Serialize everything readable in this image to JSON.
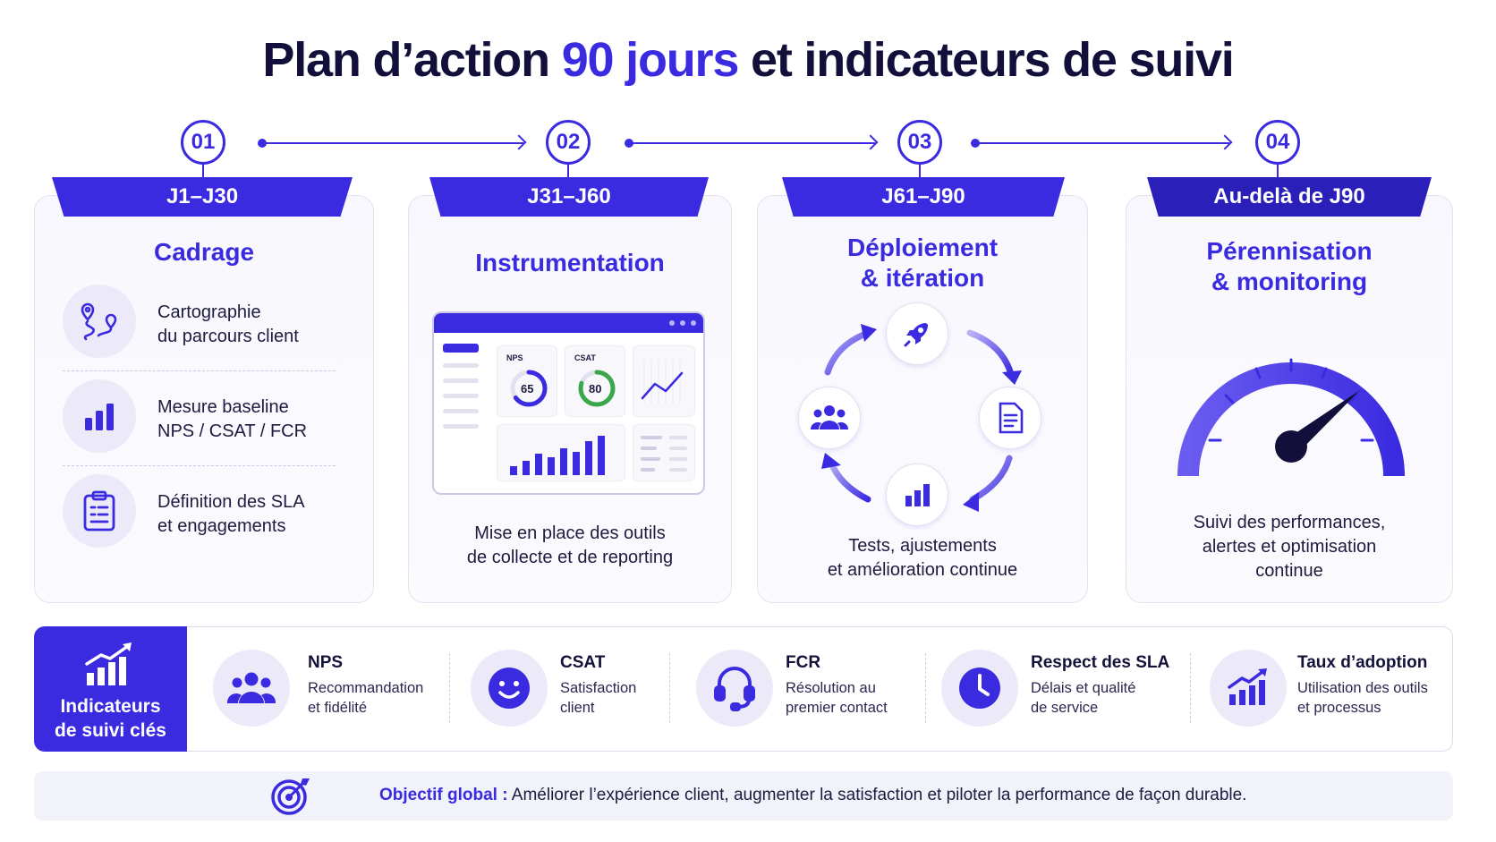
{
  "title": {
    "part1": "Plan d’action ",
    "accent": "90 jours",
    "part2": " et indicateurs de suivi"
  },
  "steps": [
    {
      "number": "01",
      "period": "J1–J30",
      "heading": "Cadrage"
    },
    {
      "number": "02",
      "period": "J31–J60",
      "heading": "Instrumentation",
      "description_line1": "Mise en place des outils",
      "description_line2": "de collecte et de reporting"
    },
    {
      "number": "03",
      "period": "J61–J90",
      "heading_line1": "Déploiement",
      "heading_line2": "& itération",
      "description_line1": "Tests, ajustements",
      "description_line2": "et amélioration continue"
    },
    {
      "number": "04",
      "period": "Au-delà de J90",
      "heading_line1": "Pérennisation",
      "heading_line2": "& monitoring",
      "description_line1": "Suivi des performances,",
      "description_line2": "alertes et optimisation",
      "description_line3": "continue"
    }
  ],
  "cadrage_items": [
    {
      "icon": "journey-map-icon",
      "line1": "Cartographie",
      "line2": "du parcours client"
    },
    {
      "icon": "bar-chart-icon",
      "line1": "Mesure baseline",
      "line2": "NPS / CSAT / FCR"
    },
    {
      "icon": "clipboard-icon",
      "line1": "Définition des SLA",
      "line2": "et engagements"
    }
  ],
  "dashboard": {
    "tiles": [
      {
        "label": "NPS",
        "value": "65"
      },
      {
        "label": "CSAT",
        "value": "80"
      }
    ]
  },
  "cycle_nodes": [
    "rocket-icon",
    "document-icon",
    "bar-chart-icon",
    "team-icon"
  ],
  "kpi": {
    "lead_line1": "Indicateurs",
    "lead_line2": "de suivi clés",
    "items": [
      {
        "icon": "users-icon",
        "title": "NPS",
        "line1": "Recommandation",
        "line2": "et fidélité"
      },
      {
        "icon": "smiley-icon",
        "title": "CSAT",
        "line1": "Satisfaction",
        "line2": "client"
      },
      {
        "icon": "headset-icon",
        "title": "FCR",
        "line1": "Résolution au",
        "line2": "premier contact"
      },
      {
        "icon": "clock-icon",
        "title": "Respect des SLA",
        "line1": "Délais et qualité",
        "line2": "de service"
      },
      {
        "icon": "growth-chart-icon",
        "title": "Taux d’adoption",
        "line1": "Utilisation des outils",
        "line2": "et processus"
      }
    ]
  },
  "objective": {
    "label": "Objectif global :",
    "text": " Améliorer l’expérience client, augmenter la satisfaction et piloter la performance de façon durable."
  },
  "colors": {
    "accent": "#3b2be0",
    "dark_accent": "#2a1fb8",
    "text": "#14123a",
    "card_bg": "#f7f7fd"
  }
}
